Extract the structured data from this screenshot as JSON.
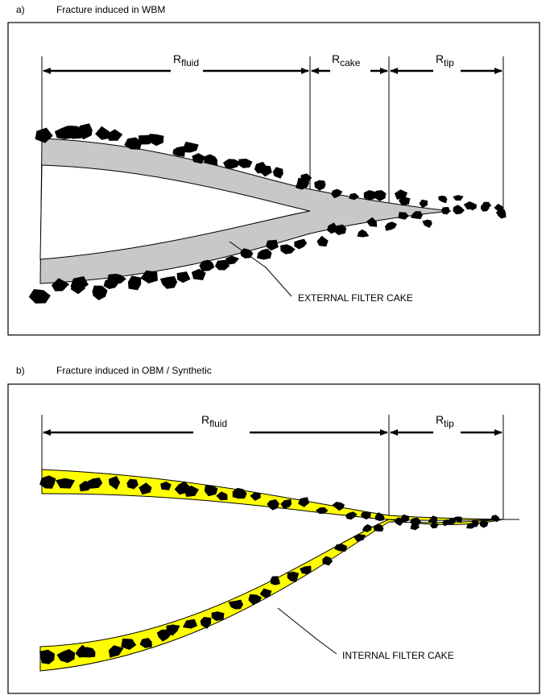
{
  "panels": [
    {
      "label": "a)",
      "title": "Fracture induced in WBM",
      "dimensions": [
        {
          "symbol": "R",
          "subscript": "fluid"
        },
        {
          "symbol": "R",
          "subscript": "cake"
        },
        {
          "symbol": "R",
          "subscript": "tip"
        }
      ],
      "callout": "EXTERNAL FILTER CAKE"
    },
    {
      "label": "b)",
      "title": "Fracture induced in OBM / Synthetic",
      "dimensions": [
        {
          "symbol": "R",
          "subscript": "fluid"
        },
        {
          "symbol": "R",
          "subscript": "tip"
        }
      ],
      "callout": "INTERNAL FILTER CAKE"
    }
  ]
}
